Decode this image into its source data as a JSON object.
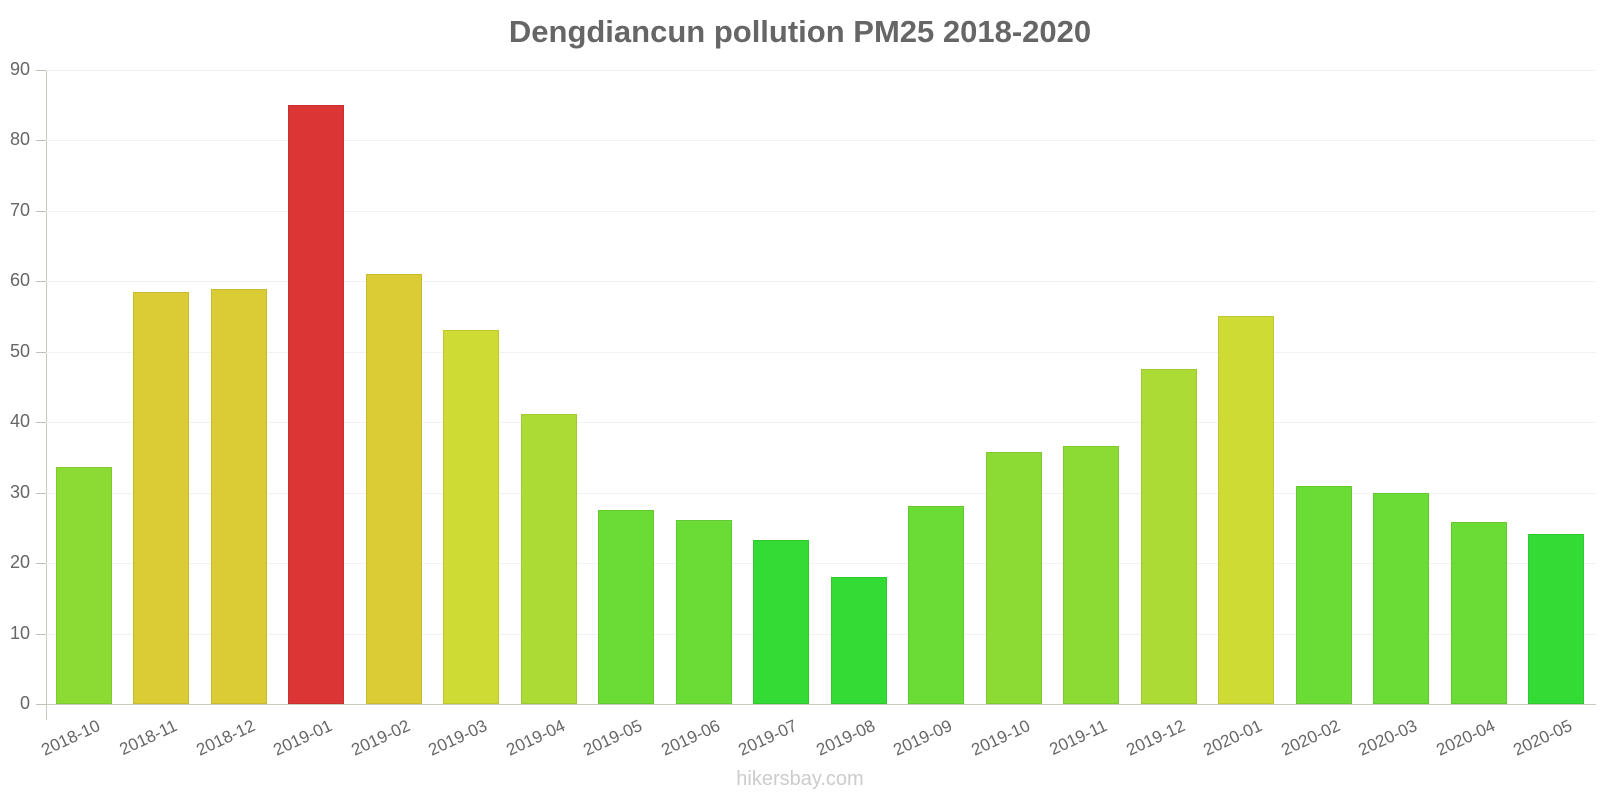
{
  "chart_data": {
    "type": "bar",
    "title": "Dengdiancun pollution PM25 2018-2020",
    "xlabel": "",
    "ylabel": "",
    "ylim": [
      0,
      90
    ],
    "yticks": [
      0,
      10,
      20,
      30,
      40,
      50,
      60,
      70,
      80,
      90
    ],
    "grid": true,
    "legend": null,
    "categories": [
      "2018-10",
      "2018-11",
      "2018-12",
      "2019-01",
      "2019-02",
      "2019-03",
      "2019-04",
      "2019-05",
      "2019-06",
      "2019-07",
      "2019-08",
      "2019-09",
      "2019-10",
      "2019-11",
      "2019-12",
      "2020-01",
      "2020-02",
      "2020-03",
      "2020-04",
      "2020-05"
    ],
    "values": [
      33.7,
      58.5,
      58.9,
      85.0,
      61.0,
      53.1,
      41.2,
      27.5,
      26.1,
      23.3,
      18.0,
      28.1,
      35.8,
      36.6,
      47.6,
      55.1,
      31.0,
      29.9,
      25.8,
      24.2
    ],
    "colors": [
      "#8cdb35",
      "#dbcb35",
      "#dbcb35",
      "#db3535",
      "#dbcb35",
      "#cfdb35",
      "#addb35",
      "#6bdb35",
      "#6bdb35",
      "#35db35",
      "#35db35",
      "#6bdb35",
      "#8cdb35",
      "#8cdb35",
      "#addb35",
      "#cfdb35",
      "#6bdb35",
      "#6bdb35",
      "#6bdb35",
      "#35db35"
    ]
  },
  "header": {
    "title": "Dengdiancun pollution PM25 2018-2020"
  },
  "footer": {
    "watermark": "hikersbay.com"
  }
}
